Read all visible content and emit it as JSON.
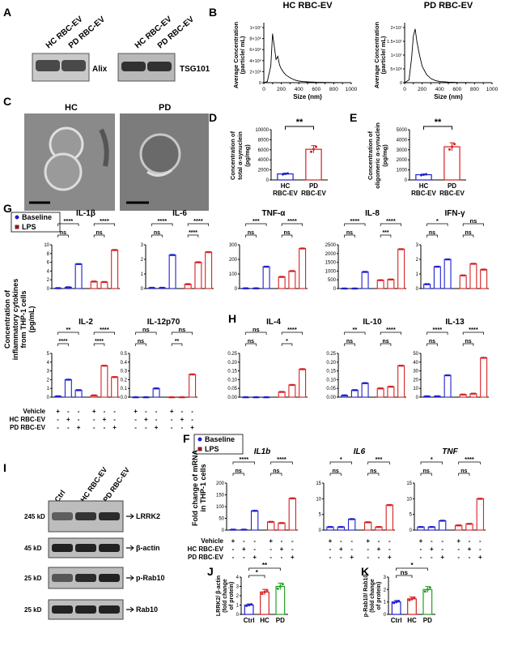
{
  "panels": {
    "A": "A",
    "B": "B",
    "C": "C",
    "D": "D",
    "E": "E",
    "G": "G",
    "H": "H",
    "F": "F",
    "I": "I",
    "J": "J",
    "K": "K"
  },
  "panelA": {
    "lane1": "HC RBC-EV",
    "lane2": "PD RBC-EV",
    "blot1": "Alix",
    "blot2": "TSG101"
  },
  "panelC": {
    "left": "HC",
    "right": "PD"
  },
  "panelI": {
    "lanes": [
      "Ctrl",
      "HC RBC-EV",
      "PD RBC-EV"
    ],
    "rows": [
      {
        "mw": "245 kD",
        "label": "LRRK2"
      },
      {
        "mw": "45 kD",
        "label": "β-actin"
      },
      {
        "mw": "25 kD",
        "label": "p-Rab10"
      },
      {
        "mw": "25 kD",
        "label": "Rab10"
      }
    ]
  },
  "legend": {
    "baseline": "Baseline",
    "lps": "LPS"
  },
  "colors": {
    "blue": "#1f1fcf",
    "red": "#d62020",
    "green": "#22a022",
    "dark": "#1a1a66",
    "darkred": "#8b1a1a"
  },
  "treat": {
    "rows": [
      "Vehicle",
      "HC RBC-EV",
      "PD RBC-EV"
    ]
  },
  "chart_data": [
    {
      "id": "B1",
      "type": "line",
      "title": "HC RBC-EV",
      "xlabel": "Size (nm)",
      "ylabel": "Average Concentration (particle/ mL)",
      "xticks": [
        "0",
        "100",
        "200",
        "300",
        "400",
        "500",
        "600",
        "700",
        "800",
        "900",
        "1000"
      ],
      "yticks": [
        "0",
        "2×10⁶",
        "4×10⁶",
        "6×10⁶",
        "8×10⁶",
        "1×10⁷"
      ],
      "xlim": [
        0,
        1000
      ],
      "ylim": [
        0,
        10000000
      ],
      "x": [
        0,
        40,
        80,
        100,
        120,
        140,
        160,
        180,
        200,
        230,
        260,
        300,
        350,
        400,
        450,
        500,
        600,
        700,
        800,
        900,
        1000
      ],
      "y": [
        0,
        200000,
        3000000,
        8900000,
        6500000,
        4200000,
        4800000,
        3200000,
        2500000,
        1800000,
        1300000,
        900000,
        500000,
        300000,
        200000,
        150000,
        80000,
        50000,
        30000,
        20000,
        10000
      ]
    },
    {
      "id": "B2",
      "type": "line",
      "title": "PD RBC-EV",
      "xlabel": "Size (nm)",
      "ylabel": "Average Concentration (particle/ mL)",
      "xticks": [
        "0",
        "100",
        "200",
        "300",
        "400",
        "500",
        "600",
        "700",
        "800",
        "900",
        "1000"
      ],
      "yticks": [
        "0",
        "5×10⁶",
        "1×10⁷",
        "1.5×10⁷",
        "2×10⁷"
      ],
      "xlim": [
        0,
        1000
      ],
      "ylim": [
        0,
        20000000
      ],
      "x": [
        0,
        50,
        80,
        100,
        120,
        140,
        170,
        200,
        250,
        300,
        350,
        400,
        500,
        600,
        700,
        800,
        900,
        1000
      ],
      "y": [
        0,
        1000000,
        9000000,
        17000000,
        19500000,
        15000000,
        10000000,
        6000000,
        3000000,
        1500000,
        800000,
        400000,
        200000,
        100000,
        50000,
        30000,
        20000,
        10000
      ]
    },
    {
      "id": "D",
      "type": "bar",
      "ylabel": "Concentration of total α-synuclein (pg/mg)",
      "categories": [
        "HC RBC-EV",
        "PD RBC-EV"
      ],
      "values": [
        1200,
        6100
      ],
      "ylim": [
        0,
        10000
      ],
      "yticks": [
        "0",
        "2000",
        "4000",
        "6000",
        "8000",
        "10000"
      ],
      "sig": "**"
    },
    {
      "id": "E",
      "type": "bar",
      "ylabel": "Concentration of oligomeric α-synuclein (pg/mg)",
      "categories": [
        "HC RBC-EV",
        "PD RBC-EV"
      ],
      "values": [
        520,
        3300
      ],
      "ylim": [
        0,
        5000
      ],
      "yticks": [
        "0",
        "1000",
        "2000",
        "3000",
        "4000",
        "5000"
      ],
      "sig": "**"
    },
    {
      "id": "IL1b",
      "type": "bar",
      "title": "IL-1β",
      "ylim": [
        0,
        10
      ],
      "yticks": [
        "0",
        "2",
        "4",
        "6",
        "8",
        "10"
      ],
      "values": [
        0.1,
        0.3,
        5.6,
        1.6,
        1.5,
        8.8
      ],
      "sig": [
        [
          "****",
          "ns"
        ],
        [
          "****",
          "ns"
        ]
      ]
    },
    {
      "id": "IL6",
      "type": "bar",
      "title": "IL-6",
      "ylim": [
        0,
        3
      ],
      "yticks": [
        "0",
        "1",
        "2",
        "3"
      ],
      "values": [
        0.05,
        0.05,
        2.3,
        0.3,
        1.8,
        2.5
      ],
      "sig": [
        [
          "****",
          "ns"
        ],
        [
          "****",
          "****"
        ]
      ]
    },
    {
      "id": "TNFa",
      "type": "bar",
      "title": "TNF-α",
      "ylim": [
        0,
        300
      ],
      "yticks": [
        "0",
        "100",
        "200",
        "300"
      ],
      "values": [
        2,
        2,
        150,
        80,
        120,
        275
      ],
      "sig": [
        [
          "***",
          "ns"
        ],
        [
          "****",
          "ns"
        ]
      ]
    },
    {
      "id": "IL8",
      "type": "bar",
      "title": "IL-8",
      "ylim": [
        0,
        2500
      ],
      "yticks": [
        "0",
        "500",
        "1000",
        "1500",
        "2000",
        "2500"
      ],
      "values": [
        5,
        5,
        950,
        480,
        520,
        2250
      ],
      "sig": [
        [
          "****",
          "ns"
        ],
        [
          "****",
          "***"
        ]
      ]
    },
    {
      "id": "IFNg",
      "type": "bar",
      "title": "IFN-γ",
      "ylim": [
        0,
        3
      ],
      "yticks": [
        "0",
        "1",
        "2",
        "3"
      ],
      "values": [
        0.3,
        1.5,
        2.0,
        0.9,
        1.7,
        1.3
      ],
      "sig": [
        [
          "*",
          "ns"
        ],
        [
          "ns",
          "ns"
        ]
      ]
    },
    {
      "id": "IL2",
      "type": "bar",
      "title": "IL-2",
      "ylim": [
        0,
        5
      ],
      "yticks": [
        "0",
        "1",
        "2",
        "3",
        "4",
        "5"
      ],
      "values": [
        0.1,
        2.0,
        0.8,
        0.2,
        3.6,
        2.3
      ],
      "sig": [
        [
          "**",
          "****"
        ],
        [
          "****",
          "****"
        ]
      ]
    },
    {
      "id": "IL12p70",
      "type": "bar",
      "title": "IL-12p70",
      "ylim": [
        0,
        0.5
      ],
      "yticks": [
        "0.0",
        "0.1",
        "0.2",
        "0.3",
        "0.4",
        "0.5"
      ],
      "values": [
        0,
        0,
        0.1,
        0,
        0,
        0.26
      ],
      "sig": [
        [
          "ns",
          "ns"
        ],
        [
          "ns",
          "**"
        ]
      ]
    },
    {
      "id": "IL4",
      "type": "bar",
      "title": "IL-4",
      "ylim": [
        0,
        0.25
      ],
      "yticks": [
        "0.00",
        "0.05",
        "0.10",
        "0.15",
        "0.20",
        "0.25"
      ],
      "values": [
        0,
        0,
        0,
        0.03,
        0.07,
        0.16
      ],
      "sig": [
        [
          "ns",
          "ns"
        ],
        [
          "****",
          "*"
        ]
      ]
    },
    {
      "id": "IL10",
      "type": "bar",
      "title": "IL-10",
      "ylim": [
        0,
        0.25
      ],
      "yticks": [
        "0.00",
        "0.05",
        "0.10",
        "0.15",
        "0.20",
        "0.25"
      ],
      "values": [
        0.01,
        0.04,
        0.08,
        0.05,
        0.06,
        0.18
      ],
      "sig": [
        [
          "**",
          "ns"
        ],
        [
          "****",
          "ns"
        ]
      ]
    },
    {
      "id": "IL13",
      "type": "bar",
      "title": "IL-13",
      "ylim": [
        0,
        50
      ],
      "yticks": [
        "0",
        "10",
        "20",
        "30",
        "40",
        "50"
      ],
      "values": [
        1,
        1,
        25,
        3,
        4,
        45
      ],
      "sig": [
        [
          "****",
          "ns"
        ],
        [
          "****",
          "ns"
        ]
      ]
    },
    {
      "id": "IL1b_mRNA",
      "type": "bar",
      "title": "IL1b",
      "ylim": [
        0,
        200
      ],
      "yticks": [
        "0",
        "50",
        "100",
        "150",
        "200"
      ],
      "values": [
        2,
        2,
        82,
        35,
        30,
        135
      ],
      "sig": [
        [
          "****",
          "ns"
        ],
        [
          "****",
          "ns"
        ]
      ]
    },
    {
      "id": "IL6_mRNA",
      "type": "bar",
      "title": "IL6",
      "ylim": [
        0,
        15
      ],
      "yticks": [
        "0",
        "5",
        "10",
        "15"
      ],
      "values": [
        1,
        1,
        3.5,
        2.5,
        1,
        8
      ],
      "sig": [
        [
          "*",
          "ns"
        ],
        [
          "***",
          "ns"
        ]
      ]
    },
    {
      "id": "TNF_mRNA",
      "type": "bar",
      "title": "TNF",
      "ylim": [
        0,
        15
      ],
      "yticks": [
        "0",
        "5",
        "10",
        "15"
      ],
      "values": [
        1,
        1,
        3,
        1.5,
        2,
        10
      ],
      "sig": [
        [
          "*",
          "ns"
        ],
        [
          "****",
          "ns"
        ]
      ]
    },
    {
      "id": "J",
      "type": "bar",
      "ylabel": "LRRK2/ β-actin (fold change of protein)",
      "categories": [
        "Ctrl",
        "HC",
        "PD"
      ],
      "values": [
        1.0,
        2.4,
        3.0
      ],
      "ylim": [
        0,
        4
      ],
      "yticks": [
        "0",
        "1",
        "2",
        "3",
        "4"
      ],
      "sig": [
        "*",
        "**"
      ]
    },
    {
      "id": "K",
      "type": "bar",
      "ylabel": "p-Rab10/ Rab10 (fold change of protein)",
      "categories": [
        "Ctrl",
        "HC",
        "PD"
      ],
      "values": [
        1.0,
        1.25,
        2.0
      ],
      "ylim": [
        0,
        3
      ],
      "yticks": [
        "0",
        "1",
        "2",
        "3"
      ],
      "sig": [
        "ns",
        "*"
      ]
    }
  ],
  "labels": {
    "cytoYlabel1": "Concentration of",
    "cytoYlabel2": "inflammatory cytokines",
    "cytoYlabel3": "from THP-1 cells",
    "cytoYlabel4": "(pg/mL)",
    "mrnaY1": "Fold change of mRNA",
    "mrnaY2": "in THP-1 cells"
  }
}
